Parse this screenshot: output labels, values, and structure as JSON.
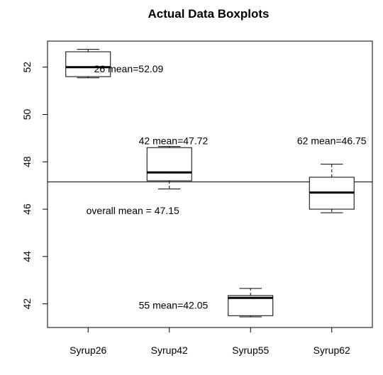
{
  "chart_data": {
    "type": "boxplot",
    "title": "Actual Data Boxplots",
    "xlabel": "",
    "ylabel": "",
    "ylim": [
      41,
      53.1
    ],
    "y_ticks": [
      42,
      44,
      46,
      48,
      50,
      52
    ],
    "y_tick_labels": [
      "42",
      "44",
      "46",
      "48",
      "50",
      "52"
    ],
    "categories": [
      "Syrup26",
      "Syrup42",
      "Syrup55",
      "Syrup62"
    ],
    "boxes": [
      {
        "name": "Syrup26",
        "whisker_low": 51.55,
        "q1": 51.6,
        "median": 52.0,
        "q3": 52.65,
        "whisker_high": 52.75
      },
      {
        "name": "Syrup42",
        "whisker_low": 46.85,
        "q1": 47.2,
        "median": 47.55,
        "q3": 48.6,
        "whisker_high": 48.65
      },
      {
        "name": "Syrup55",
        "whisker_low": 41.45,
        "q1": 41.5,
        "median": 42.25,
        "q3": 42.35,
        "whisker_high": 42.65
      },
      {
        "name": "Syrup62",
        "whisker_low": 45.85,
        "q1": 46.0,
        "median": 46.7,
        "q3": 47.35,
        "whisker_high": 47.9
      }
    ],
    "reference_line": {
      "y": 47.15
    },
    "annotations": [
      {
        "text": "26 mean=52.09",
        "x": 1.5,
        "y": 51.9
      },
      {
        "text": "42 mean=47.72",
        "x": 2.05,
        "y": 48.85
      },
      {
        "text": "55 mean=42.05",
        "x": 2.05,
        "y": 41.9
      },
      {
        "text": "62 mean=46.75",
        "x": 4.0,
        "y": 48.85
      },
      {
        "text": "overall mean = 47.15",
        "x": 1.55,
        "y": 45.9
      }
    ],
    "grid": false,
    "legend": "none"
  }
}
